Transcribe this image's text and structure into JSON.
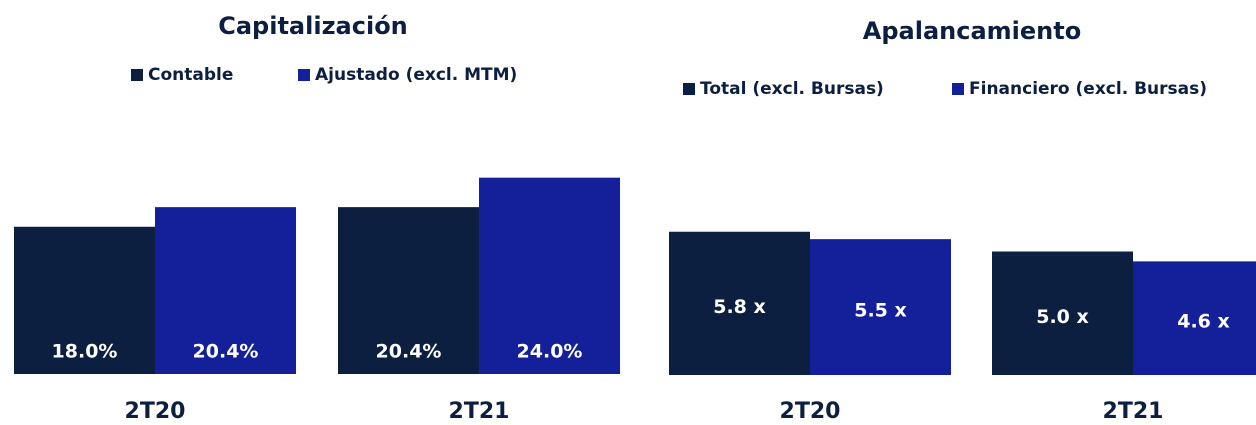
{
  "chart_data": [
    {
      "type": "bar",
      "title": "Capitalización",
      "categories": [
        "2T20",
        "2T21"
      ],
      "series": [
        {
          "name": "Contable",
          "color": "#0d1f40",
          "values": [
            18.0,
            20.4
          ],
          "value_labels": [
            "18.0%",
            "20.4%"
          ]
        },
        {
          "name": "Ajustado (excl. MTM)",
          "color": "#14209a",
          "values": [
            20.4,
            24.0
          ],
          "value_labels": [
            "20.4%",
            "24.0%"
          ]
        }
      ]
    },
    {
      "type": "bar",
      "title": "Apalancamiento",
      "categories": [
        "2T20",
        "2T21"
      ],
      "series": [
        {
          "name": "Total (excl. Bursas)",
          "color": "#0d1f40",
          "values": [
            5.8,
            5.0
          ],
          "value_labels": [
            "5.8 x",
            "5.0 x"
          ]
        },
        {
          "name": "Financiero (excl. Bursas)",
          "color": "#14209a",
          "values": [
            5.5,
            4.6
          ],
          "value_labels": [
            "5.5 x",
            "4.6 x"
          ]
        }
      ]
    }
  ]
}
